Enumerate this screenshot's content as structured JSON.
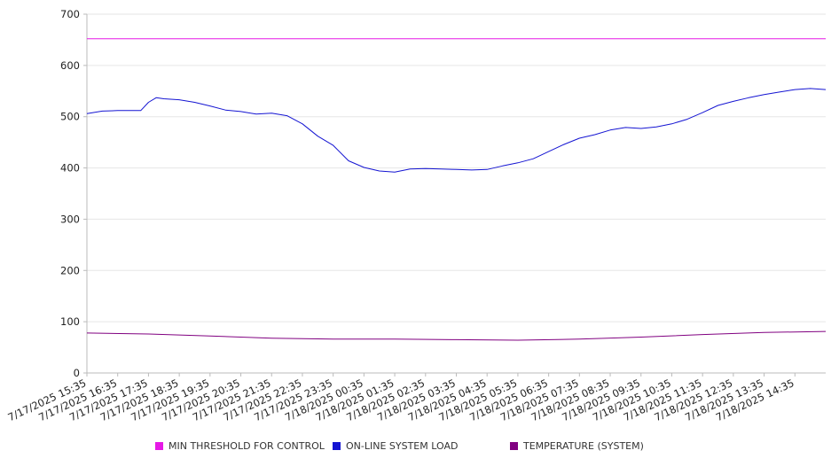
{
  "chart_data": {
    "type": "line",
    "title": "",
    "xlabel": "",
    "ylabel": "",
    "ylim": [
      0,
      700
    ],
    "yticks": [
      0,
      100,
      200,
      300,
      400,
      500,
      600,
      700
    ],
    "grid": true,
    "legend_position": "bottom",
    "x_tick_labels": [
      "7/17/2025 15:35",
      "7/17/2025 16:35",
      "7/17/2025 17:35",
      "7/17/2025 18:35",
      "7/17/2025 19:35",
      "7/17/2025 20:35",
      "7/17/2025 21:35",
      "7/17/2025 22:35",
      "7/17/2025 23:35",
      "7/18/2025 00:35",
      "7/18/2025 01:35",
      "7/18/2025 02:35",
      "7/18/2025 03:35",
      "7/18/2025 04:35",
      "7/18/2025 05:35",
      "7/18/2025 06:35",
      "7/18/2025 07:35",
      "7/18/2025 08:35",
      "7/18/2025 09:35",
      "7/18/2025 10:35",
      "7/18/2025 11:35",
      "7/18/2025 12:35",
      "7/18/2025 13:35",
      "7/18/2025 14:35"
    ],
    "x_last": "7/18/2025 15:35",
    "series": [
      {
        "name": "MIN THRESHOLD FOR CONTROL",
        "color": "#e619e6",
        "x": [
          "7/17/2025 15:35",
          "7/18/2025 15:35"
        ],
        "values": [
          652,
          652
        ]
      },
      {
        "name": "ON-LINE SYSTEM LOAD",
        "color": "#1414d2",
        "x": [
          "7/17/2025 15:35",
          "7/17/2025 16:05",
          "7/17/2025 16:35",
          "7/17/2025 17:05",
          "7/17/2025 17:20",
          "7/17/2025 17:35",
          "7/17/2025 17:50",
          "7/17/2025 18:05",
          "7/17/2025 18:35",
          "7/17/2025 19:05",
          "7/17/2025 19:35",
          "7/17/2025 20:05",
          "7/17/2025 20:35",
          "7/17/2025 21:05",
          "7/17/2025 21:35",
          "7/17/2025 22:05",
          "7/17/2025 22:35",
          "7/17/2025 23:05",
          "7/17/2025 23:35",
          "7/18/2025 00:05",
          "7/18/2025 00:35",
          "7/18/2025 01:05",
          "7/18/2025 01:35",
          "7/18/2025 02:05",
          "7/18/2025 02:35",
          "7/18/2025 03:05",
          "7/18/2025 03:35",
          "7/18/2025 04:05",
          "7/18/2025 04:35",
          "7/18/2025 05:05",
          "7/18/2025 05:35",
          "7/18/2025 06:05",
          "7/18/2025 06:35",
          "7/18/2025 07:05",
          "7/18/2025 07:35",
          "7/18/2025 08:05",
          "7/18/2025 08:35",
          "7/18/2025 09:05",
          "7/18/2025 09:35",
          "7/18/2025 10:05",
          "7/18/2025 10:35",
          "7/18/2025 11:05",
          "7/18/2025 11:35",
          "7/18/2025 12:05",
          "7/18/2025 12:35",
          "7/18/2025 13:05",
          "7/18/2025 13:35",
          "7/18/2025 14:05",
          "7/18/2025 14:35",
          "7/18/2025 15:05",
          "7/18/2025 15:35"
        ],
        "values": [
          506,
          511,
          512,
          512,
          512,
          528,
          537,
          535,
          533,
          528,
          521,
          513,
          510,
          505,
          507,
          502,
          486,
          462,
          444,
          414,
          401,
          394,
          392,
          398,
          399,
          398,
          397,
          396,
          397,
          404,
          410,
          418,
          432,
          446,
          458,
          465,
          474,
          479,
          477,
          480,
          486,
          495,
          508,
          522,
          530,
          537,
          543,
          548,
          553,
          555,
          553
        ]
      },
      {
        "name": "TEMPERATURE (SYSTEM)",
        "color": "#800080",
        "x": [
          "7/17/2025 15:35",
          "7/17/2025 17:35",
          "7/17/2025 19:35",
          "7/17/2025 21:35",
          "7/17/2025 23:35",
          "7/18/2025 01:35",
          "7/18/2025 03:35",
          "7/18/2025 05:35",
          "7/18/2025 07:35",
          "7/18/2025 09:35",
          "7/18/2025 11:35",
          "7/18/2025 13:35",
          "7/18/2025 15:35"
        ],
        "values": [
          78,
          76,
          72,
          68,
          66,
          66,
          65,
          64,
          66,
          70,
          75,
          79,
          81
        ]
      }
    ]
  }
}
